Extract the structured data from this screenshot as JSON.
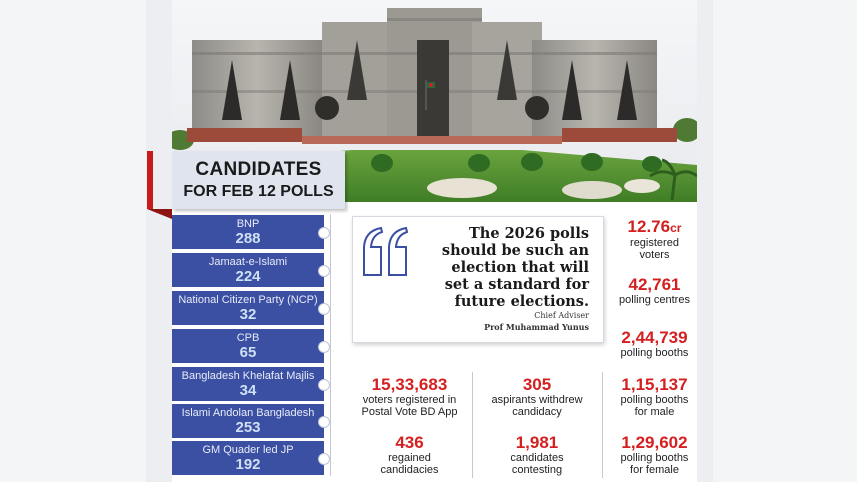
{
  "title": {
    "line1": "CANDIDATES",
    "line2": "FOR FEB 12 POLLS"
  },
  "parties": [
    {
      "name": "BNP",
      "count": "288"
    },
    {
      "name": "Jamaat-e-Islami",
      "count": "224"
    },
    {
      "name": "National Citizen Party (NCP)",
      "count": "32"
    },
    {
      "name": "CPB",
      "count": "65"
    },
    {
      "name": "Bangladesh Khelafat Majlis",
      "count": "34"
    },
    {
      "name": "Islami Andolan Bangladesh",
      "count": "253"
    },
    {
      "name": "GM Quader led JP",
      "count": "192"
    }
  ],
  "quote": {
    "lines": [
      "The 2026 polls",
      "should be such an",
      "election that will",
      "set a standard for",
      "future elections."
    ],
    "role": "Chief Adviser",
    "name": "Prof Muhammad Yunus"
  },
  "stats": {
    "voters": {
      "value": "12.76",
      "unit": "cr",
      "label1": "registered",
      "label2": "voters"
    },
    "polling_centres": {
      "value": "42,761",
      "label1": "polling centres"
    },
    "polling_booths": {
      "value": "2,44,739",
      "label1": "polling booths"
    },
    "booths_male": {
      "value": "1,15,137",
      "label1": "polling booths",
      "label2": "for male"
    },
    "booths_female": {
      "value": "1,29,602",
      "label1": "polling booths",
      "label2": "for female"
    },
    "postal": {
      "value": "15,33,683",
      "label1": "voters registered in",
      "label2": "Postal Vote BD App"
    },
    "withdrew": {
      "value": "305",
      "label1": "aspirants withdrew",
      "label2": "candidacy"
    },
    "regained": {
      "value": "436",
      "label1": "regained",
      "label2": "candidacies"
    },
    "contesting": {
      "value": "1,981",
      "label1": "candidates",
      "label2": "contesting"
    }
  },
  "colors": {
    "accent_red": "#d42020",
    "party_blue": "#3b4fa3",
    "title_bg": "#dfe4ef"
  }
}
